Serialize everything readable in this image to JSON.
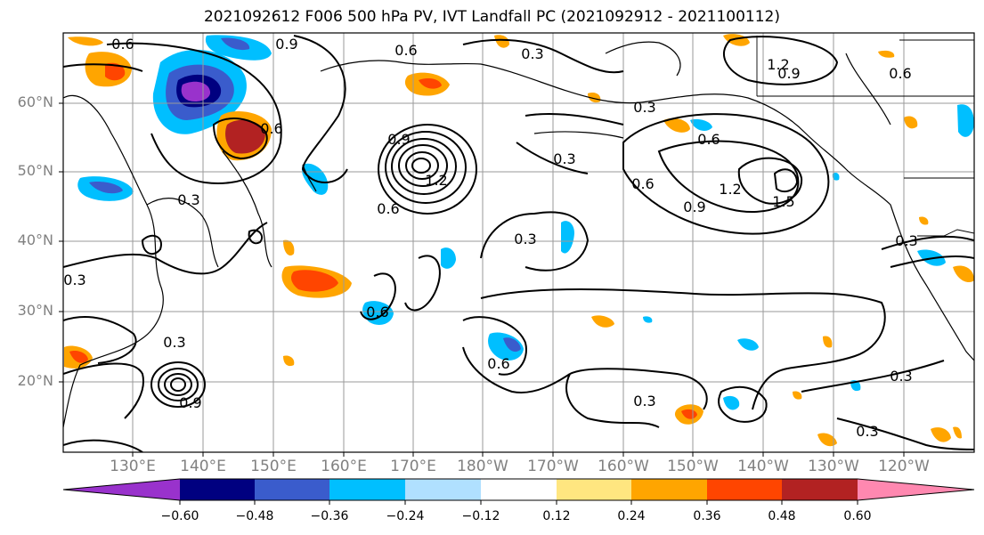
{
  "title": "2021092612 F006 500 hPa PV, IVT Landfall PC (2021092912 - 2021100112)",
  "lat_labels": [
    "60°N",
    "50°N",
    "40°N",
    "30°N",
    "20°N"
  ],
  "lon_labels": [
    "130°E",
    "140°E",
    "150°E",
    "160°E",
    "170°E",
    "180°W",
    "170°W",
    "160°W",
    "150°W",
    "140°W",
    "130°W",
    "120°W"
  ],
  "colorbar": {
    "ticks": [
      "−0.60",
      "−0.48",
      "−0.36",
      "−0.24",
      "−0.12",
      "0.12",
      "0.24",
      "0.36",
      "0.48",
      "0.60"
    ],
    "colors": [
      "#9932cc",
      "#000080",
      "#3a5ccc",
      "#00bfff",
      "#b0e0ff",
      "#ffffff",
      "#ffe680",
      "#ffa500",
      "#ff4500",
      "#b22222",
      "#ff88b0"
    ]
  },
  "contour_labels": [
    "0.6",
    "0.9",
    "0.6",
    "1.2",
    "0.9",
    "0.6",
    "0.3",
    "0.6",
    "0.3",
    "0.6",
    "1.2",
    "0.9",
    "1.5",
    "0.9",
    "0.6",
    "1.2",
    "0.3",
    "0.3",
    "0.3",
    "0.6",
    "0.3",
    "0.3",
    "0.3",
    "0.3",
    "0.6",
    "0.9",
    "0.6",
    "0.3",
    "0.3"
  ]
}
